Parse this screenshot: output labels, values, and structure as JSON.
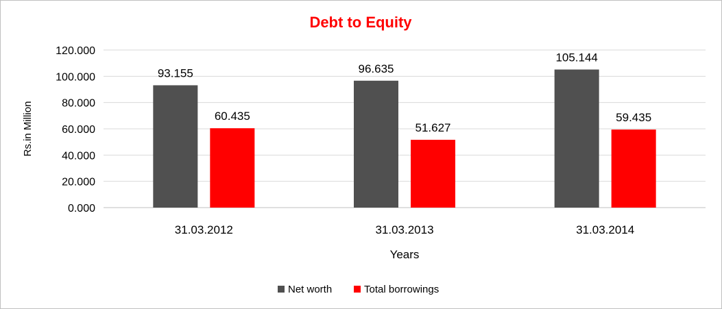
{
  "chart_data": {
    "type": "bar",
    "title": "Debt to Equity",
    "xlabel": "Years",
    "ylabel": "Rs.in Million",
    "categories": [
      "31.03.2012",
      "31.03.2013",
      "31.03.2014"
    ],
    "series": [
      {
        "name": "Net worth",
        "color": "#505050",
        "values": [
          93.155,
          96.635,
          105.144
        ],
        "labels": [
          "93.155",
          "96.635",
          "105.144"
        ]
      },
      {
        "name": "Total borrowings",
        "color": "#ff0000",
        "values": [
          60.435,
          51.627,
          59.435
        ],
        "labels": [
          "60.435",
          "51.627",
          "59.435"
        ]
      }
    ],
    "ylim": [
      0,
      120
    ],
    "yticks": [
      0,
      20,
      40,
      60,
      80,
      100,
      120
    ],
    "ytick_labels": [
      "0.000",
      "20.000",
      "40.000",
      "60.000",
      "80.000",
      "100.000",
      "120.000"
    ],
    "grid": true,
    "legend_position": "bottom",
    "title_color": "#ff0000"
  }
}
